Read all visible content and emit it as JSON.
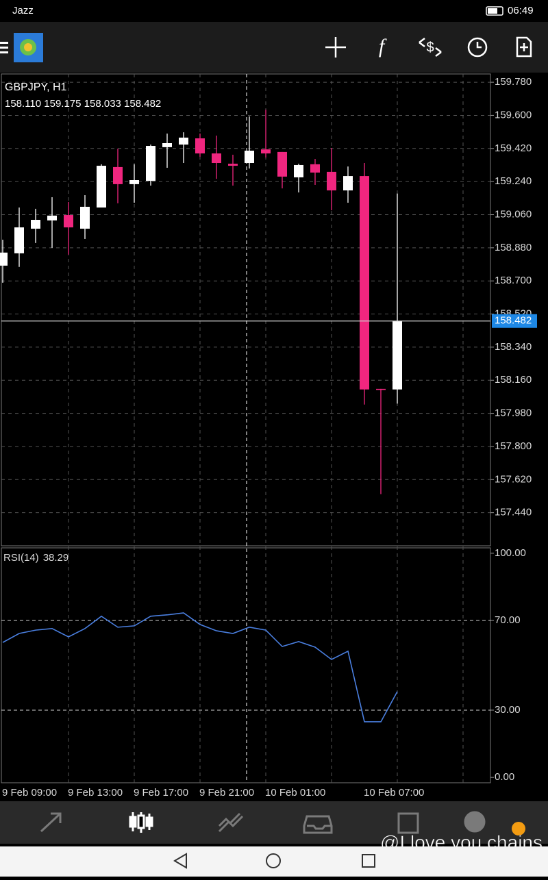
{
  "status_bar": {
    "carrier": "Jazz",
    "time": "06:49"
  },
  "watermark": "@I love you chains",
  "chart_data": [
    {
      "type": "candlestick",
      "title": "GBPJPY, H1",
      "quote": "158.110 159.175 158.033 158.482",
      "up_color": "#ffffff",
      "down_color": "#f0267f",
      "last_price_color": "#1e88e5",
      "grid": true,
      "categories": [
        "9 Feb 09:00",
        null,
        null,
        null,
        "9 Feb 13:00",
        null,
        null,
        null,
        "9 Feb 17:00",
        null,
        null,
        null,
        "9 Feb 21:00",
        null,
        null,
        null,
        "10 Feb 01:00",
        null,
        null,
        null,
        null,
        null,
        "10 Feb 07:00",
        null,
        null
      ],
      "open": [
        158.783,
        158.85,
        158.984,
        159.029,
        159.058,
        158.984,
        159.099,
        159.319,
        159.226,
        159.244,
        159.427,
        159.441,
        159.475,
        159.393,
        159.337,
        159.341,
        159.415,
        159.401,
        159.263,
        159.334,
        159.293,
        159.192,
        159.27,
        158.113,
        158.11
      ],
      "high": [
        158.924,
        159.099,
        159.092,
        159.155,
        159.129,
        159.166,
        159.334,
        159.419,
        159.334,
        159.441,
        159.501,
        159.508,
        159.501,
        159.49,
        159.386,
        159.594,
        159.631,
        159.401,
        159.337,
        159.363,
        159.423,
        159.322,
        159.341,
        158.113,
        159.175
      ],
      "low": [
        158.69,
        158.776,
        158.906,
        158.88,
        158.843,
        158.928,
        159.099,
        159.122,
        159.125,
        159.218,
        159.315,
        159.341,
        159.375,
        159.255,
        159.218,
        159.311,
        159.371,
        159.203,
        159.181,
        159.222,
        159.084,
        159.125,
        158.028,
        157.541,
        158.033
      ],
      "close": [
        158.854,
        158.991,
        159.032,
        159.055,
        158.991,
        159.103,
        159.326,
        159.226,
        159.248,
        159.434,
        159.449,
        159.479,
        159.393,
        159.341,
        159.326,
        159.408,
        159.393,
        159.267,
        159.33,
        159.289,
        159.192,
        159.27,
        158.11,
        158.11,
        158.482
      ],
      "ylim": [
        157.26,
        159.825
      ],
      "yticks": [
        {
          "value": 159.78,
          "label": "159.780"
        },
        {
          "value": 159.6,
          "label": "159.600"
        },
        {
          "value": 159.42,
          "label": "159.420"
        },
        {
          "value": 159.24,
          "label": "159.240"
        },
        {
          "value": 159.06,
          "label": "159.060"
        },
        {
          "value": 158.88,
          "label": "158.880"
        },
        {
          "value": 158.7,
          "label": "158.700"
        },
        {
          "value": 158.52,
          "label": "158.520"
        },
        {
          "value": 158.34,
          "label": "158.340"
        },
        {
          "value": 158.16,
          "label": "158.160"
        },
        {
          "value": 157.98,
          "label": "157.980"
        },
        {
          "value": 157.8,
          "label": "157.800"
        },
        {
          "value": 157.62,
          "label": "157.620"
        },
        {
          "value": 157.44,
          "label": "157.440"
        }
      ]
    },
    {
      "type": "line",
      "title": "RSI(14)",
      "color": "#4a7fe0",
      "values": [
        60.2,
        64.2,
        65.7,
        66.4,
        62.7,
        66.4,
        71.9,
        67.0,
        67.6,
        71.9,
        72.5,
        73.4,
        68.2,
        65.4,
        64.2,
        67.0,
        65.7,
        58.4,
        60.6,
        58.1,
        52.6,
        56.3,
        24.8,
        24.8,
        38.29
      ],
      "ylim": [
        -2.4,
        102.4
      ],
      "yticks": [
        {
          "value": 100,
          "label": "100.00"
        },
        {
          "value": 70,
          "label": "70.00"
        },
        {
          "value": 30,
          "label": "30.00"
        },
        {
          "value": 0,
          "label": "0.00"
        }
      ],
      "levels": [
        70,
        30
      ]
    }
  ]
}
